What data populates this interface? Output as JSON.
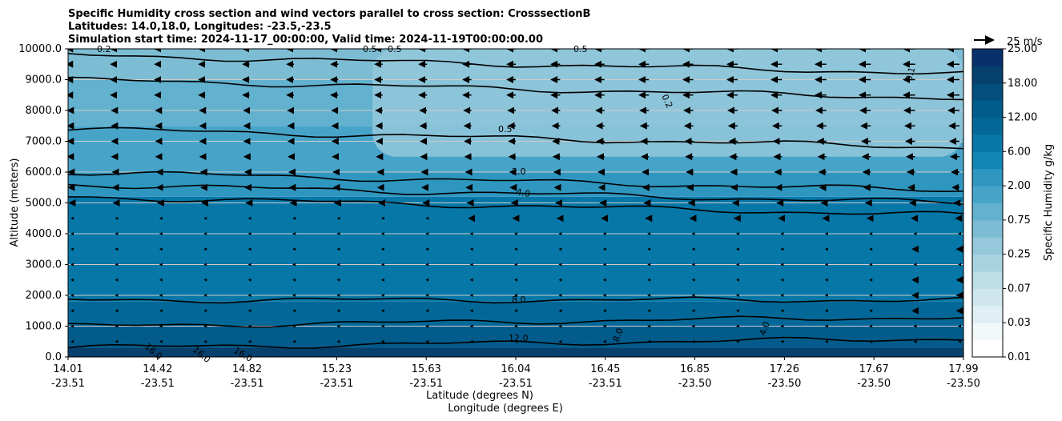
{
  "chart_data": {
    "type": "heatmap",
    "title_lines": [
      "Specific Humidity cross section and wind vectors parallel to cross section: CrosssectionB",
      "Latitudes: 14.0,18.0, Longitudes: -23.5,-23.5",
      "Simulation start time: 2024-11-17_00:00:00, Valid time: 2024-11-19T00:00:00.00"
    ],
    "ylabel": "Altitude (meters)",
    "xlabel_lat": "Latitude (degrees N)",
    "xlabel_lon": "Longitude (degrees E)",
    "y_ticks": [
      "0.0",
      "1000.0",
      "2000.0",
      "3000.0",
      "4000.0",
      "5000.0",
      "6000.0",
      "7000.0",
      "8000.0",
      "9000.0",
      "10000.0"
    ],
    "ylim": [
      0,
      10000
    ],
    "x_ticks": [
      {
        "lat": "14.01",
        "lon": "-23.51"
      },
      {
        "lat": "14.42",
        "lon": "-23.51"
      },
      {
        "lat": "14.82",
        "lon": "-23.51"
      },
      {
        "lat": "15.23",
        "lon": "-23.51"
      },
      {
        "lat": "15.63",
        "lon": "-23.51"
      },
      {
        "lat": "16.04",
        "lon": "-23.51"
      },
      {
        "lat": "16.45",
        "lon": "-23.51"
      },
      {
        "lat": "16.85",
        "lon": "-23.50"
      },
      {
        "lat": "17.26",
        "lon": "-23.50"
      },
      {
        "lat": "17.67",
        "lon": "-23.50"
      },
      {
        "lat": "17.99",
        "lon": "-23.50"
      }
    ],
    "colorbar": {
      "label": "Specific Humidity g/kg",
      "tick_labels": [
        "0.01",
        "0.03",
        "0.07",
        "0.25",
        "0.75",
        "2.00",
        "6.00",
        "12.00",
        "18.00",
        "25.00"
      ],
      "levels": [
        0.01,
        0.02,
        0.03,
        0.05,
        0.07,
        0.1,
        0.25,
        0.5,
        0.75,
        1.0,
        2.0,
        4.0,
        6.0,
        8.0,
        12.0,
        15.0,
        18.0,
        22.0,
        25.0
      ],
      "colors": [
        "#ffffff",
        "#f2f9fb",
        "#e0eff4",
        "#cfe6ed",
        "#bddde7",
        "#a9d3e1",
        "#94c8da",
        "#7cbdd4",
        "#62b1ce",
        "#47a4c8",
        "#2f96c0",
        "#1486b5",
        "#0677a7",
        "#036898",
        "#025b8b",
        "#034e7d",
        "#06406d",
        "#08306b"
      ]
    },
    "quiver_key": {
      "label": "25 m/s",
      "speed": 25
    },
    "contour_labels": [
      "0.2",
      "0.5",
      "0.5",
      "2.0",
      "4.0",
      "8.0",
      "12.0",
      "16.0",
      "16.0",
      "16.0",
      "8.0",
      "4.0",
      "0.1",
      "0.2",
      "0.5",
      "0.5"
    ],
    "grid": "horizontal",
    "humidity_bands": [
      {
        "top_m": 300,
        "value": 18.0
      },
      {
        "top_m": 1000,
        "value": 14.0
      },
      {
        "top_m": 1800,
        "value": 10.0
      },
      {
        "top_m": 5200,
        "value": 6.0
      },
      {
        "top_m": 6000,
        "value": 3.0
      },
      {
        "top_m": 7500,
        "value": 1.5
      },
      {
        "top_m": 9000,
        "value": 0.8
      },
      {
        "top_m": 10000,
        "value": 0.6
      }
    ],
    "dry_region": {
      "value": 0.25,
      "x_from": 0.34,
      "x_to": 1.0,
      "alt_from_m": 6500,
      "alt_to_m": 10000
    },
    "wind_levels": [
      {
        "alt_m": 10000,
        "u": -6,
        "u_end": -14
      },
      {
        "alt_m": 9500,
        "u": -6,
        "u_end": -14
      },
      {
        "alt_m": 9000,
        "u": -6,
        "u_end": -14
      },
      {
        "alt_m": 8500,
        "u": -6,
        "u_end": -14
      },
      {
        "alt_m": 8000,
        "u": -5,
        "u_end": -13
      },
      {
        "alt_m": 7500,
        "u": -5,
        "u_end": -12
      },
      {
        "alt_m": 7000,
        "u": -5,
        "u_end": -11
      },
      {
        "alt_m": 6500,
        "u": -5,
        "u_end": -10
      },
      {
        "alt_m": 6000,
        "u": -4,
        "u_end": -9
      },
      {
        "alt_m": 5500,
        "u": -4,
        "u_end": -8
      },
      {
        "alt_m": 5000,
        "u": -3,
        "u_end": -6
      },
      {
        "alt_m": 4500,
        "u": -2,
        "u_end": -4
      },
      {
        "alt_m": 4000,
        "u": -1,
        "u_end": -2
      },
      {
        "alt_m": 3500,
        "u": -1,
        "u_end": -3
      },
      {
        "alt_m": 3000,
        "u": -1,
        "u_end": -2
      },
      {
        "alt_m": 2500,
        "u": -1,
        "u_end": -3
      },
      {
        "alt_m": 2000,
        "u": -1,
        "u_end": -3
      },
      {
        "alt_m": 1500,
        "u": -1,
        "u_end": -3
      },
      {
        "alt_m": 1000,
        "u": -1,
        "u_end": -2
      },
      {
        "alt_m": 500,
        "u": -1,
        "u_end": -1
      }
    ],
    "wind_columns": 21
  }
}
